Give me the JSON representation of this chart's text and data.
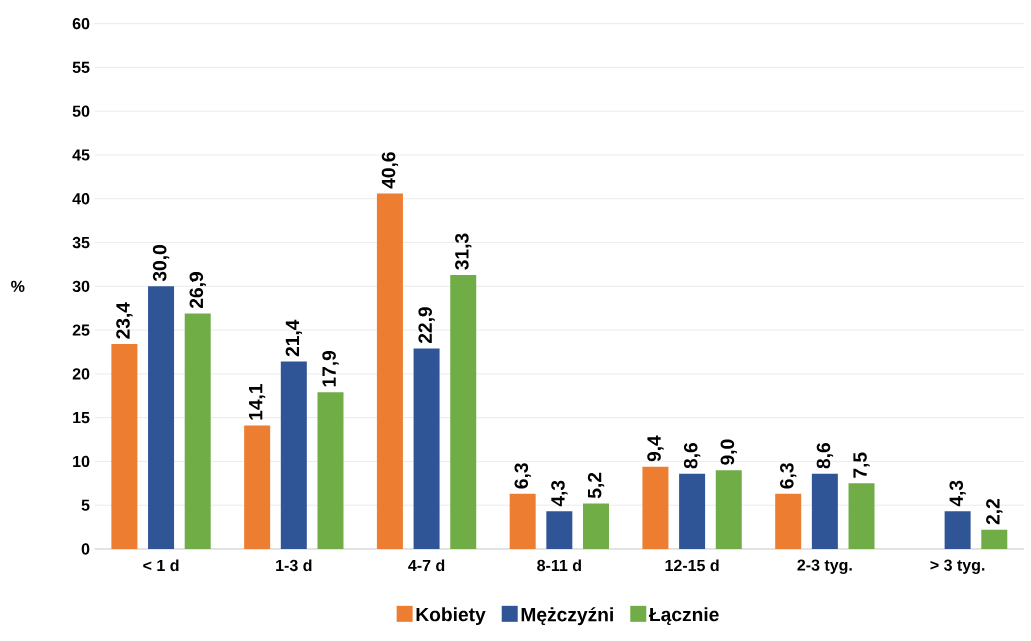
{
  "chart_data": {
    "type": "bar",
    "ylabel": "%",
    "categories": [
      "< 1 d",
      "1-3 d",
      "4-7 d",
      "8-11 d",
      "12-15 d",
      "2-3 tyg.",
      "> 3 tyg."
    ],
    "series": [
      {
        "name": "Kobiety",
        "color": "#ed7d31",
        "values": [
          23.4,
          14.1,
          40.6,
          6.3,
          9.4,
          6.3,
          null
        ],
        "value_labels": [
          "23,4",
          "14,1",
          "40,6",
          "6,3",
          "9,4",
          "6,3",
          null
        ]
      },
      {
        "name": "Mężczyźni",
        "color": "#2f5597",
        "values": [
          30.0,
          21.4,
          22.9,
          4.3,
          8.6,
          8.6,
          4.3
        ],
        "value_labels": [
          "30,0",
          "21,4",
          "22,9",
          "4,3",
          "8,6",
          "8,6",
          "4,3"
        ]
      },
      {
        "name": "Łącznie",
        "color": "#70ad47",
        "values": [
          26.9,
          17.9,
          31.3,
          5.2,
          9.0,
          7.5,
          2.2
        ],
        "value_labels": [
          "26,9",
          "17,9",
          "31,3",
          "5,2",
          "9,0",
          "7,5",
          "2,2"
        ]
      }
    ],
    "ylim": [
      0,
      60
    ],
    "yticks": [
      0,
      5,
      10,
      15,
      20,
      25,
      30,
      35,
      40,
      45,
      50,
      55,
      60
    ],
    "grid": "y",
    "legend": "bottom"
  }
}
